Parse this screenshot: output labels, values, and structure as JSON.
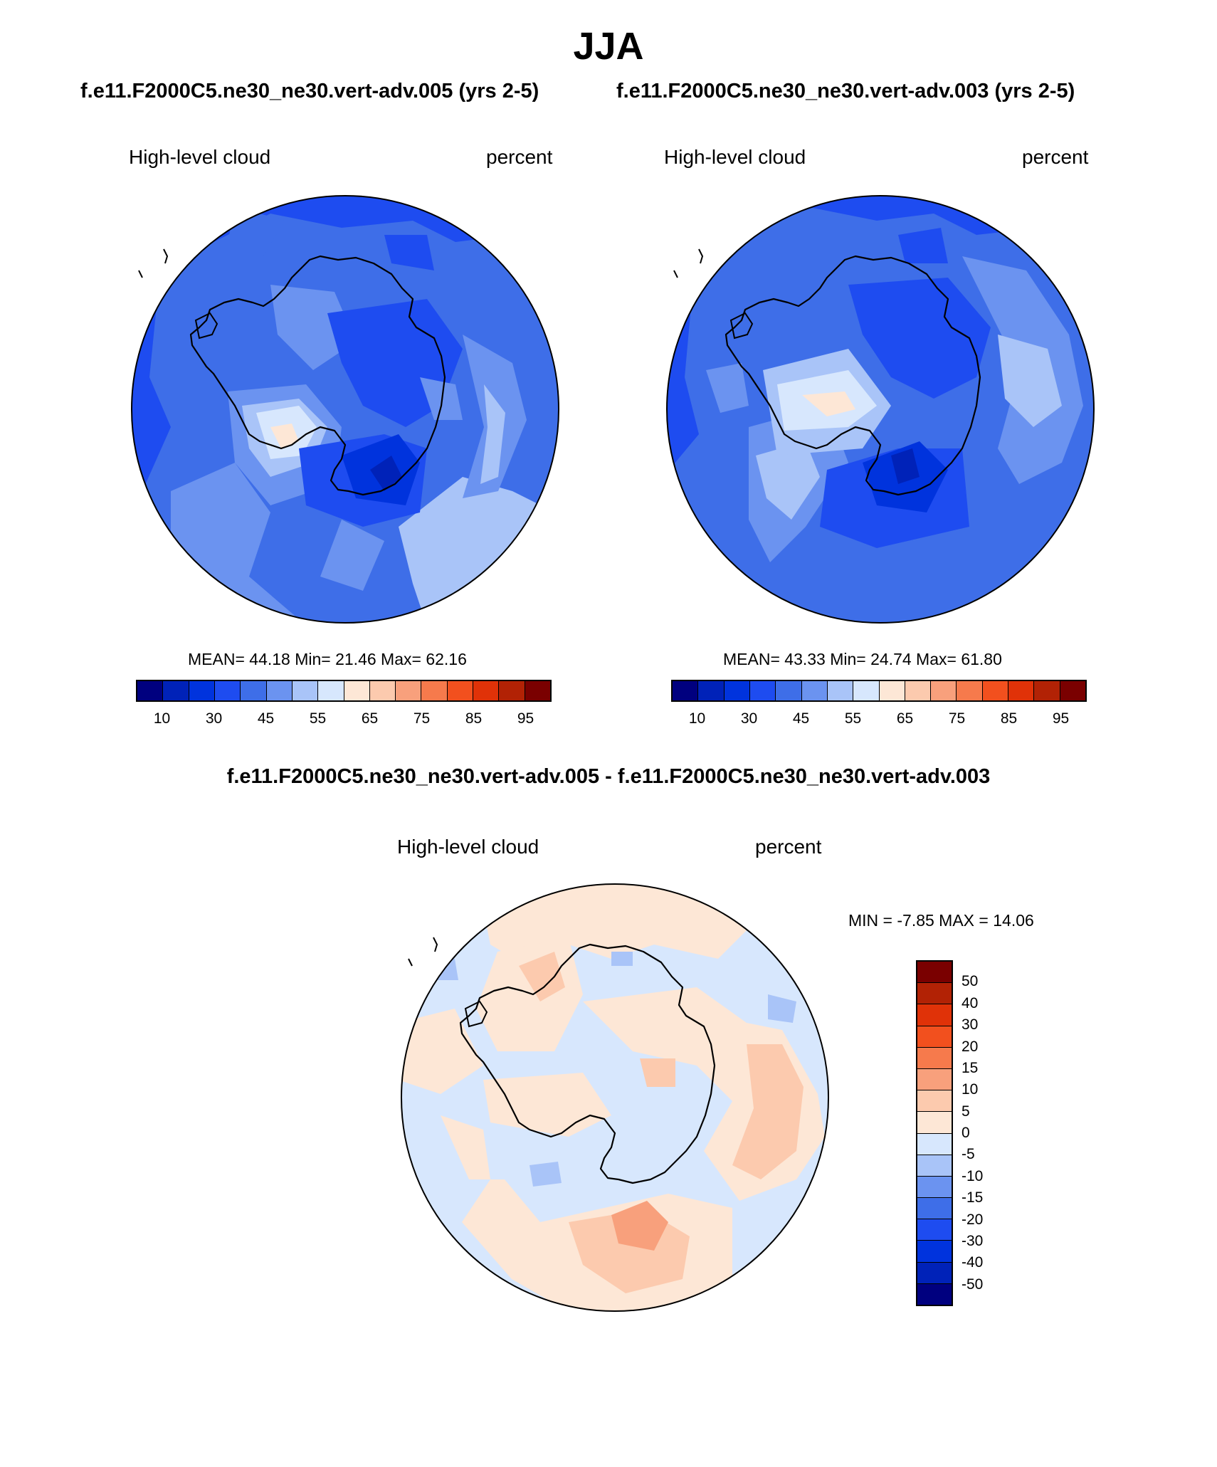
{
  "figure": {
    "season": "JJA",
    "left_title": "f.e11.F2000C5.ne30_ne30.vert-adv.005 (yrs 2-5)",
    "right_title": "f.e11.F2000C5.ne30_ne30.vert-adv.003 (yrs 2-5)",
    "diff_title": "f.e11.F2000C5.ne30_ne30.vert-adv.005 - f.e11.F2000C5.ne30_ne30.vert-adv.003"
  },
  "panels": [
    {
      "variable": "High-level cloud",
      "units": "percent",
      "stats_text": "MEAN=  44.18  Min=  21.46  Max=  62.16",
      "mean": 44.18,
      "min": 21.46,
      "max": 62.16
    },
    {
      "variable": "High-level cloud",
      "units": "percent",
      "stats_text": "MEAN=  43.33  Min=  24.74  Max=  61.80",
      "mean": 43.33,
      "min": 24.74,
      "max": 61.8
    },
    {
      "variable": "High-level cloud",
      "units": "percent",
      "stats_text": "MIN =  -7.85 MAX =  14.06",
      "min": -7.85,
      "max": 14.06
    }
  ],
  "colorbar_abs": {
    "colors": [
      "#00007f",
      "#0022b8",
      "#0033dd",
      "#1e4cf0",
      "#3e6ee8",
      "#6b93f0",
      "#a9c4f8",
      "#d7e7fd",
      "#fde7d6",
      "#fccaae",
      "#f8a07c",
      "#f67a4c",
      "#f2501e",
      "#e03208",
      "#b22205",
      "#7a0000"
    ],
    "tick_labels": [
      "10",
      "30",
      "45",
      "55",
      "65",
      "75",
      "85",
      "95"
    ]
  },
  "colorbar_diff": {
    "colors": [
      "#7a0000",
      "#b22205",
      "#e03208",
      "#f2501e",
      "#f67a4c",
      "#f8a07c",
      "#fccaae",
      "#fde7d6",
      "#d7e7fd",
      "#a9c4f8",
      "#6b93f0",
      "#3e6ee8",
      "#1e4cf0",
      "#0033dd",
      "#0022b8",
      "#00007f"
    ],
    "tick_labels": [
      "50",
      "40",
      "30",
      "20",
      "15",
      "10",
      "5",
      "0",
      "-5",
      "-10",
      "-15",
      "-20",
      "-30",
      "-40",
      "-50"
    ]
  }
}
